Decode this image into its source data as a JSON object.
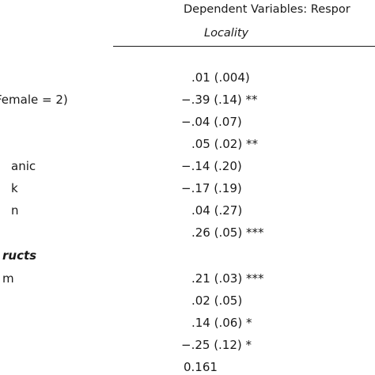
{
  "header": {
    "dependent_variables": "Dependent Variables: Respor",
    "column": "Locality"
  },
  "rows": [
    {
      "label": "",
      "value": ".01 (.004)"
    },
    {
      "label": "Female = 2)",
      "value": "−.39 (.14) **"
    },
    {
      "label": "",
      "value": "−.04 (.07)"
    },
    {
      "label": "",
      "value": ".05 (.02) **"
    },
    {
      "label": "anic",
      "value": "−.14 (.20)"
    },
    {
      "label": "k",
      "value": "−.17 (.19)"
    },
    {
      "label": "n",
      "value": ".04 (.27)"
    },
    {
      "label": "",
      "value": ".26 (.05) ***"
    },
    {
      "label": "ructs",
      "value": ""
    },
    {
      "label": "m",
      "value": ".21 (.03) ***"
    },
    {
      "label": "",
      "value": ".02 (.05)"
    },
    {
      "label": "",
      "value": ".14 (.06) *"
    },
    {
      "label": "",
      "value": "−.25 (.12) *"
    },
    {
      "label": "",
      "value": "0.161"
    }
  ]
}
